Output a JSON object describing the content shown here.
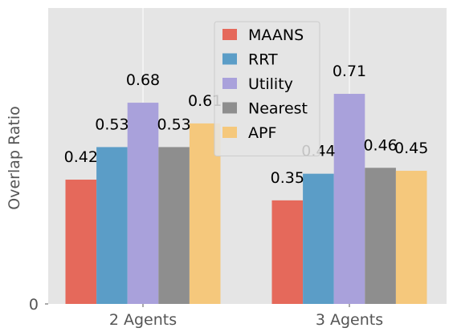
{
  "chart_data": {
    "type": "bar",
    "categories": [
      "2 Agents",
      "3 Agents"
    ],
    "series": [
      {
        "name": "MAANS",
        "values": [
          0.42,
          0.35
        ],
        "labels": [
          "0.42",
          "0.35"
        ],
        "color": "#e5695b"
      },
      {
        "name": "RRT",
        "values": [
          0.53,
          0.44
        ],
        "labels": [
          "0.53",
          "0.44"
        ],
        "color": "#5b9dc7"
      },
      {
        "name": "Utility",
        "values": [
          0.68,
          0.71
        ],
        "labels": [
          "0.68",
          "0.71"
        ],
        "color": "#a9a1db"
      },
      {
        "name": "Nearest",
        "values": [
          0.53,
          0.46
        ],
        "labels": [
          "0.53",
          "0.46"
        ],
        "color": "#8e8e8e"
      },
      {
        "name": "APF",
        "values": [
          0.61,
          0.45
        ],
        "labels": [
          "0.61",
          "0.45"
        ],
        "color": "#f5c87c"
      }
    ],
    "title": "",
    "xlabel": "",
    "ylabel": "Overlap Ratio",
    "yticks": [
      {
        "value": 0,
        "label": "0"
      }
    ],
    "ylim": [
      0,
      1.0
    ],
    "grid": true,
    "legend_position": "top-center",
    "background_color": "#e5e5e5",
    "grid_color": "#ffffff"
  }
}
